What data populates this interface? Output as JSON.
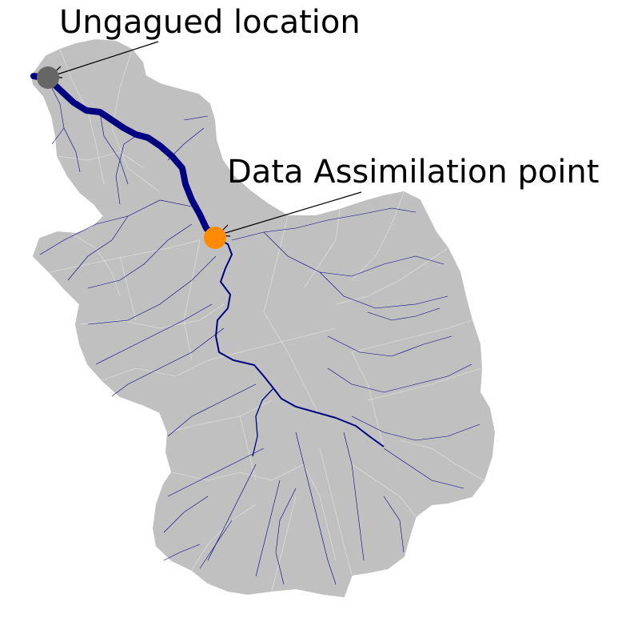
{
  "labels": {
    "ungauged": "Ungagued location",
    "assimilation": "Data Assimilation point"
  },
  "colors": {
    "catchment_fill": "#c0c0c0",
    "subcatchment_lines": "#dcdcdc",
    "river": "#000080",
    "ungauged_marker": "#666666",
    "assimilation_marker": "#ff8c00",
    "annotation_line": "#000000"
  },
  "markers": [
    {
      "name": "ungauged",
      "shape": "circle",
      "color": "gray"
    },
    {
      "name": "assimilation",
      "shape": "circle",
      "color": "orange"
    }
  ]
}
